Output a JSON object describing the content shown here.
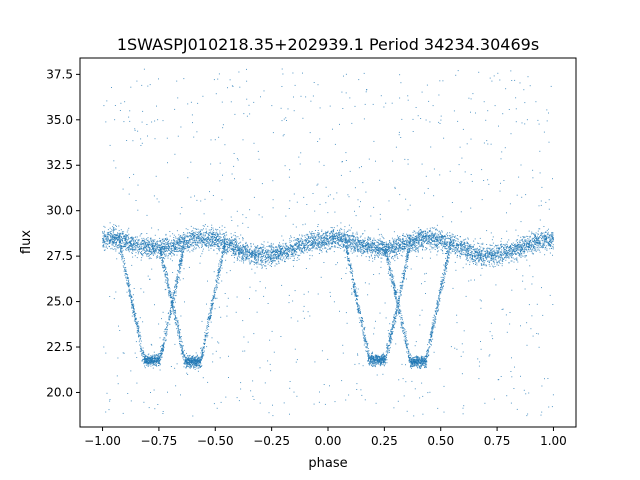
{
  "chart_data": {
    "type": "scatter",
    "title": "1SWASPJ010218.35+202939.1 Period 34234.30469s",
    "xlabel": "phase",
    "ylabel": "flux",
    "xlim": [
      -1.1,
      1.1
    ],
    "ylim": [
      18.1,
      38.4
    ],
    "x_ticks": [
      -1.0,
      -0.75,
      -0.5,
      -0.25,
      0.0,
      0.25,
      0.5,
      0.75,
      1.0
    ],
    "x_tick_labels": [
      "−1.00",
      "−0.75",
      "−0.50",
      "−0.25",
      "0.00",
      "0.25",
      "0.50",
      "0.75",
      "1.00"
    ],
    "y_ticks": [
      20.0,
      22.5,
      25.0,
      27.5,
      30.0,
      32.5,
      35.0,
      37.5
    ],
    "y_tick_labels": [
      "20.0",
      "22.5",
      "25.0",
      "27.5",
      "30.0",
      "32.5",
      "35.0",
      "37.5"
    ],
    "grid": false,
    "series": [
      {
        "color": "#1f77b4",
        "marker": "point",
        "profile": {
          "phase": [
            -1.0,
            -0.95,
            -0.9,
            -0.85,
            -0.8,
            -0.75,
            -0.7,
            -0.65,
            -0.6,
            -0.55,
            -0.5,
            -0.45,
            -0.4,
            -0.35,
            -0.3,
            -0.25,
            -0.2,
            -0.15,
            -0.1,
            -0.05,
            0.0,
            0.05,
            0.1,
            0.15,
            0.2,
            0.25,
            0.3,
            0.35,
            0.4,
            0.45,
            0.5,
            0.55,
            0.6,
            0.65,
            0.7,
            0.75,
            0.8,
            0.85,
            0.9,
            0.95,
            1.0
          ],
          "flux_upper_band": [
            28.4,
            28.5,
            28.3,
            28.1,
            28.0,
            27.9,
            28.0,
            28.2,
            28.4,
            28.5,
            28.4,
            28.2,
            27.9,
            27.6,
            27.5,
            27.6,
            27.7,
            27.9,
            28.2,
            28.4,
            28.4,
            28.5,
            28.3,
            28.1,
            28.0,
            27.9,
            28.0,
            28.2,
            28.4,
            28.5,
            28.4,
            28.2,
            27.9,
            27.6,
            27.5,
            27.6,
            27.7,
            27.9,
            28.2,
            28.4,
            28.4
          ]
        },
        "eclipse_minima": [
          {
            "phase": -0.78,
            "flux": 21.8
          },
          {
            "phase": -0.6,
            "flux": 21.7
          },
          {
            "phase": 0.22,
            "flux": 21.8
          },
          {
            "phase": 0.4,
            "flux": 21.7
          }
        ]
      }
    ]
  }
}
